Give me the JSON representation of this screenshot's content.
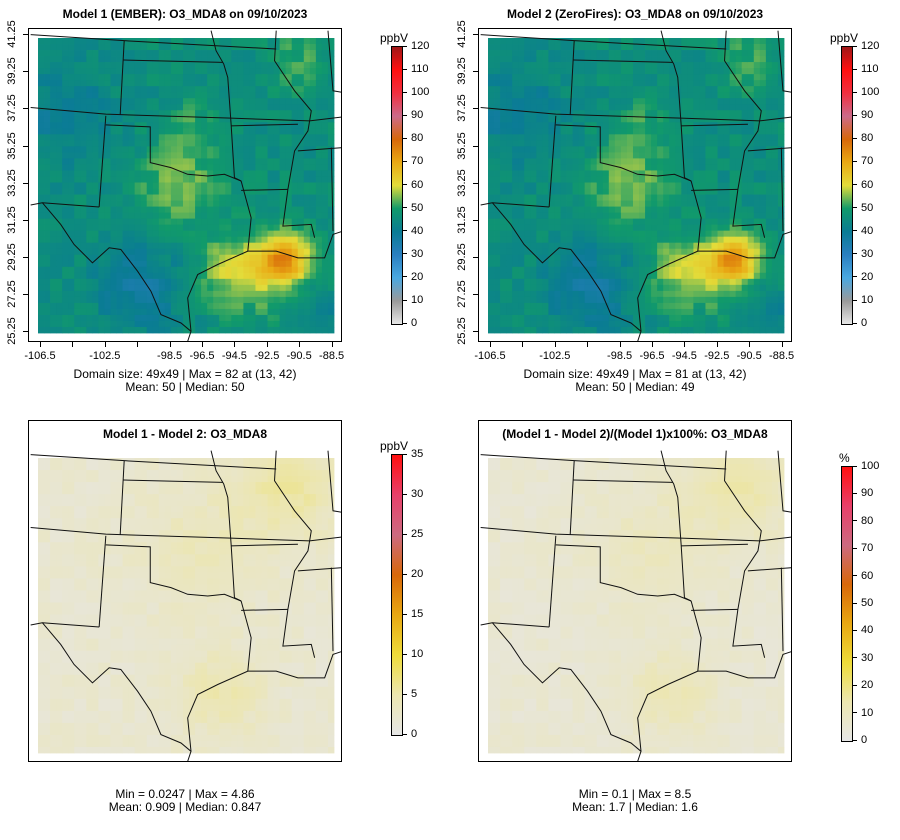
{
  "panels": [
    {
      "title": "Model 1 (EMBER): O3_MDA8 on 09/10/2023",
      "stat_line1": "Domain size: 49x49 | Max = 82 at (13, 42)",
      "stat_line2": "Mean: 50 |  Median: 50",
      "colorbar": {
        "unit": "ppbV",
        "labels": [
          "0",
          "10",
          "20",
          "30",
          "40",
          "50",
          "60",
          "70",
          "80",
          "90",
          "100",
          "110",
          "120"
        ]
      },
      "show_axes": true
    },
    {
      "title": "Model 2 (ZeroFires): O3_MDA8 on 09/10/2023",
      "stat_line1": "Domain size: 49x49 | Max = 81 at (13, 42)",
      "stat_line2": "Mean: 50 |  Median: 49",
      "colorbar": {
        "unit": "ppbV",
        "labels": [
          "0",
          "10",
          "20",
          "30",
          "40",
          "50",
          "60",
          "70",
          "80",
          "90",
          "100",
          "110",
          "120"
        ]
      },
      "show_axes": true
    },
    {
      "title": "Model 1 - Model 2: O3_MDA8",
      "stat_line1": "Min = 0.0247 | Max = 4.86",
      "stat_line2": "Mean: 0.909 |  Median: 0.847",
      "colorbar": {
        "unit": "ppbV",
        "labels": [
          "0",
          "5",
          "10",
          "15",
          "20",
          "25",
          "30",
          "35"
        ]
      },
      "show_axes": false
    },
    {
      "title": "(Model 1 - Model 2)/(Model 1)x100%: O3_MDA8",
      "stat_line1": "Min = 0.1 | Max = 8.5",
      "stat_line2": "Mean: 1.7 |  Median: 1.6",
      "colorbar": {
        "unit": "%",
        "labels": [
          "0",
          "10",
          "20",
          "30",
          "40",
          "50",
          "60",
          "70",
          "80",
          "90",
          "100"
        ]
      },
      "show_axes": false
    }
  ],
  "axes": {
    "x_ticks": [
      "-106.5",
      "",
      "-102.5",
      "",
      "-98.5",
      "-96.5",
      "-94.5",
      "-92.5",
      "-90.5",
      "-88.5"
    ],
    "y_ticks": [
      "25.25",
      "27.25",
      "29.25",
      "31.25",
      "33.25",
      "35.25",
      "37.25",
      "39.25",
      "41.25"
    ]
  },
  "chart_data": {
    "type": "heatmap",
    "grid": "49x49",
    "variable": "O3_MDA8",
    "date": "09/10/2023",
    "lon_range": [
      -106.5,
      -88.5
    ],
    "lat_range": [
      25.25,
      41.25
    ],
    "colors": {
      "ppbv_scale": [
        "#e6e6e6",
        "#9a9a9a",
        "#4aa8e0",
        "#2a7fc0",
        "#0a7c94",
        "#119a6a",
        "#e3dc3a",
        "#e9a914",
        "#d7680a",
        "#cc6a8a",
        "#f03040",
        "#ff1010",
        "#a01818"
      ],
      "diff_scale": [
        "#e6e6e6",
        "#ece6b0",
        "#eedc3a",
        "#e8a812",
        "#d8680a",
        "#cc6a80",
        "#e8406a",
        "#ff1010"
      ]
    }
  }
}
